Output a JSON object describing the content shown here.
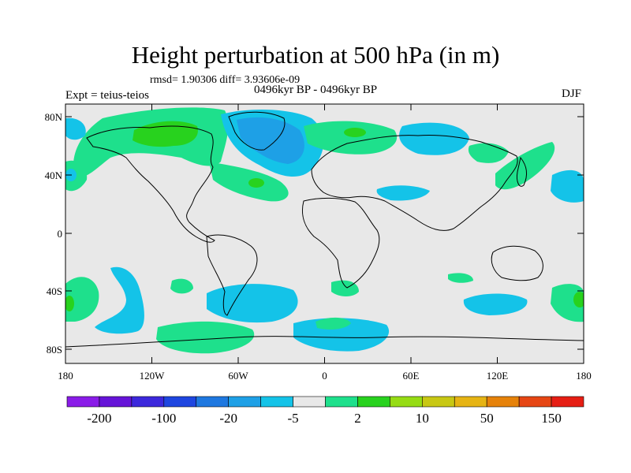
{
  "map": {
    "title": "Height perturbation at 500 hPa (in m)",
    "stats": "rmsd= 1.90306 diff= 3.93606e-09",
    "period": "0496kyr BP - 0496kyr BP",
    "expt": "Expt = teius-teios",
    "season": "DJF",
    "background_color": "#e8e8e8",
    "coastline_color": "#000000",
    "lon_ticks": [
      "180",
      "120W",
      "60W",
      "0",
      "60E",
      "120E",
      "180"
    ],
    "lat_ticks": [
      "80N",
      "40N",
      "0",
      "40S",
      "80S"
    ]
  },
  "colorbar": {
    "colors": [
      "#8a1ce8",
      "#6614d8",
      "#3c28dc",
      "#1e46e0",
      "#1e78e0",
      "#1ea0e6",
      "#14c3e8",
      "#e8e8e8",
      "#1ee08c",
      "#28d21e",
      "#96dc14",
      "#c8c814",
      "#e6b414",
      "#e6820a",
      "#e64614",
      "#e61e14"
    ],
    "labels": [
      "-200",
      "-100",
      "-20",
      "-5",
      "2",
      "10",
      "50",
      "150"
    ]
  },
  "regions": [
    {
      "name": "north-america-arctic-green",
      "color": "#1ee08c"
    },
    {
      "name": "canada-core-lime",
      "color": "#28d21e"
    },
    {
      "name": "greenland-atlantic-blue",
      "color": "#1ea0e6"
    },
    {
      "name": "greenland-core-blue",
      "color": "#1e78e0"
    },
    {
      "name": "eurasia-green",
      "color": "#1ee08c"
    },
    {
      "name": "siberia-cyan",
      "color": "#14c3e8"
    },
    {
      "name": "east-asia-green",
      "color": "#1ee08c"
    },
    {
      "name": "pacific-cyan",
      "color": "#14c3e8"
    },
    {
      "name": "southern-ocean-cyan",
      "color": "#14c3e8"
    },
    {
      "name": "antarctic-green",
      "color": "#1ee08c"
    }
  ]
}
